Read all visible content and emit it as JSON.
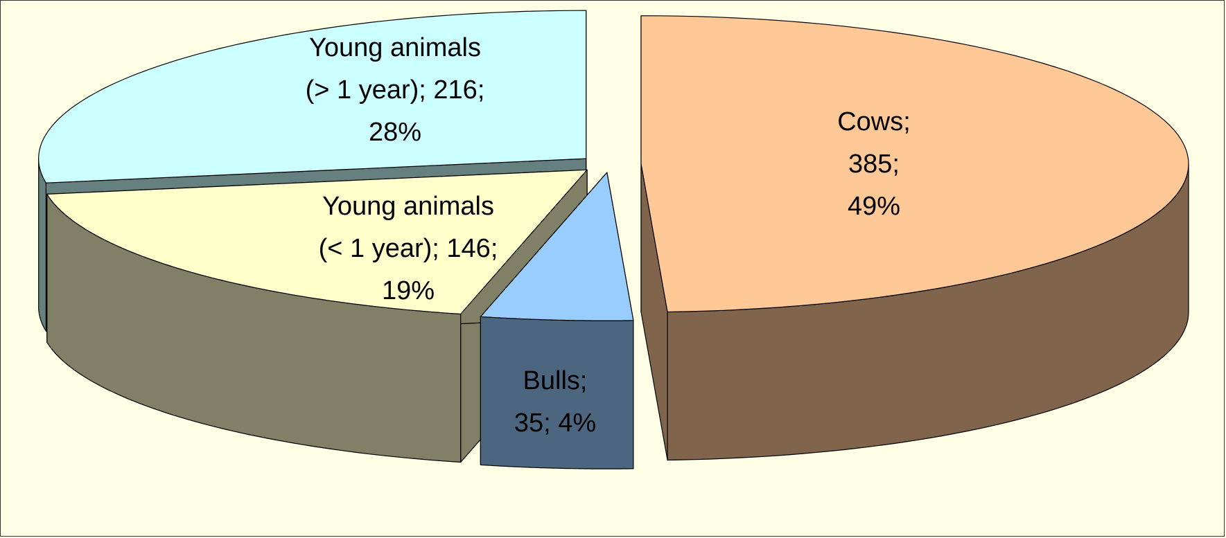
{
  "chart_data": {
    "type": "pie3d",
    "categories": [
      "Cows",
      "Bulls",
      "Young animals (< 1 year)",
      "Young animals (> 1 year)"
    ],
    "values": [
      385,
      35,
      146,
      216
    ],
    "percent_labels": [
      "49%",
      "4%",
      "19%",
      "28%"
    ],
    "label_separator": ";",
    "colors": [
      "#ffc896",
      "#99ccff",
      "#ffffcc",
      "#ccffff"
    ]
  }
}
